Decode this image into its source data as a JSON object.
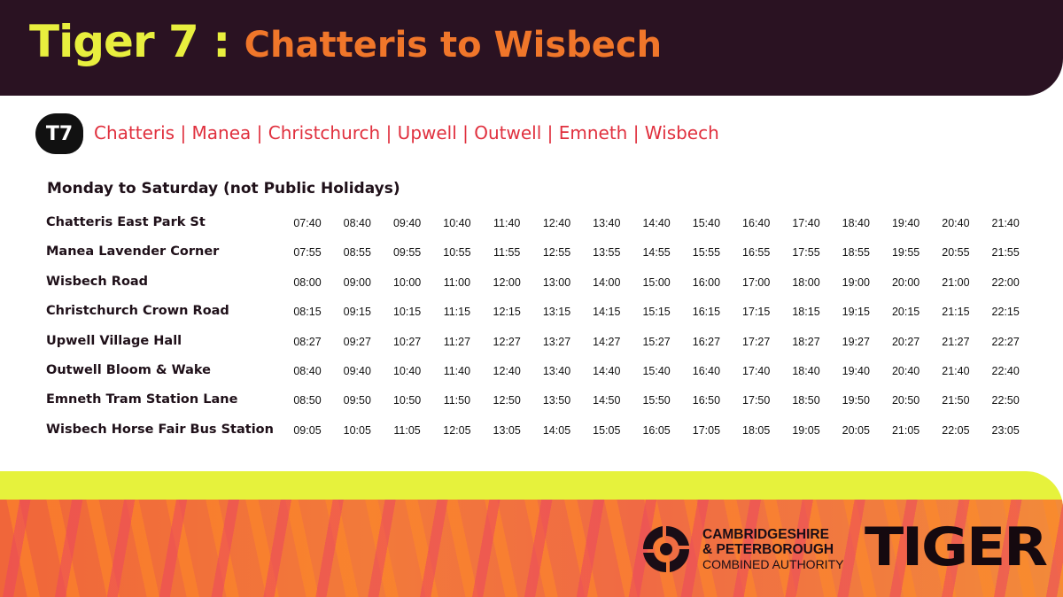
{
  "header": {
    "route_number": "Tiger 7 :",
    "route_name": "Chatteris to Wisbech"
  },
  "route": {
    "badge": "T7",
    "stops_line": "Chatteris | Manea | Christchurch | Upwell | Outwell | Emneth | Wisbech"
  },
  "timetable": {
    "days": "Monday to Saturday (not Public Holidays)",
    "rows": [
      {
        "stop": "Chatteris East Park St",
        "times": [
          "07:40",
          "08:40",
          "09:40",
          "10:40",
          "11:40",
          "12:40",
          "13:40",
          "14:40",
          "15:40",
          "16:40",
          "17:40",
          "18:40",
          "19:40",
          "20:40",
          "21:40"
        ]
      },
      {
        "stop": "Manea Lavender Corner",
        "times": [
          "07:55",
          "08:55",
          "09:55",
          "10:55",
          "11:55",
          "12:55",
          "13:55",
          "14:55",
          "15:55",
          "16:55",
          "17:55",
          "18:55",
          "19:55",
          "20:55",
          "21:55"
        ]
      },
      {
        "stop": "Wisbech Road",
        "times": [
          "08:00",
          "09:00",
          "10:00",
          "11:00",
          "12:00",
          "13:00",
          "14:00",
          "15:00",
          "16:00",
          "17:00",
          "18:00",
          "19:00",
          "20:00",
          "21:00",
          "22:00"
        ]
      },
      {
        "stop": "Christchurch Crown Road",
        "times": [
          "08:15",
          "09:15",
          "10:15",
          "11:15",
          "12:15",
          "13:15",
          "14:15",
          "15:15",
          "16:15",
          "17:15",
          "18:15",
          "19:15",
          "20:15",
          "21:15",
          "22:15"
        ]
      },
      {
        "stop": "Upwell Village Hall",
        "times": [
          "08:27",
          "09:27",
          "10:27",
          "11:27",
          "12:27",
          "13:27",
          "14:27",
          "15:27",
          "16:27",
          "17:27",
          "18:27",
          "19:27",
          "20:27",
          "21:27",
          "22:27"
        ]
      },
      {
        "stop": "Outwell Bloom & Wake",
        "times": [
          "08:40",
          "09:40",
          "10:40",
          "11:40",
          "12:40",
          "13:40",
          "14:40",
          "15:40",
          "16:40",
          "17:40",
          "18:40",
          "19:40",
          "20:40",
          "21:40",
          "22:40"
        ]
      },
      {
        "stop": "Emneth Tram Station Lane",
        "times": [
          "08:50",
          "09:50",
          "10:50",
          "11:50",
          "12:50",
          "13:50",
          "14:50",
          "15:50",
          "16:50",
          "17:50",
          "18:50",
          "19:50",
          "20:50",
          "21:50",
          "22:50"
        ]
      },
      {
        "stop": "Wisbech Horse Fair Bus Station",
        "times": [
          "09:05",
          "10:05",
          "11:05",
          "12:05",
          "13:05",
          "14:05",
          "15:05",
          "16:05",
          "17:05",
          "18:05",
          "19:05",
          "20:05",
          "21:05",
          "22:05",
          "23:05"
        ]
      }
    ]
  },
  "footer": {
    "authority_line1": "CAMBRIDGESHIRE",
    "authority_line2": "& PETERBOROUGH",
    "authority_line3": "COMBINED AUTHORITY",
    "brand": "TIGER"
  },
  "colors": {
    "header_bg": "#2a1222",
    "route_number": "#e8ef3e",
    "route_name": "#f0762a",
    "stops_line": "#e0303e",
    "footer_band": "#e6f23c",
    "footer_stripe": "#f0663a"
  },
  "icons": {
    "authority_logo": "cpca-swirl-icon"
  }
}
